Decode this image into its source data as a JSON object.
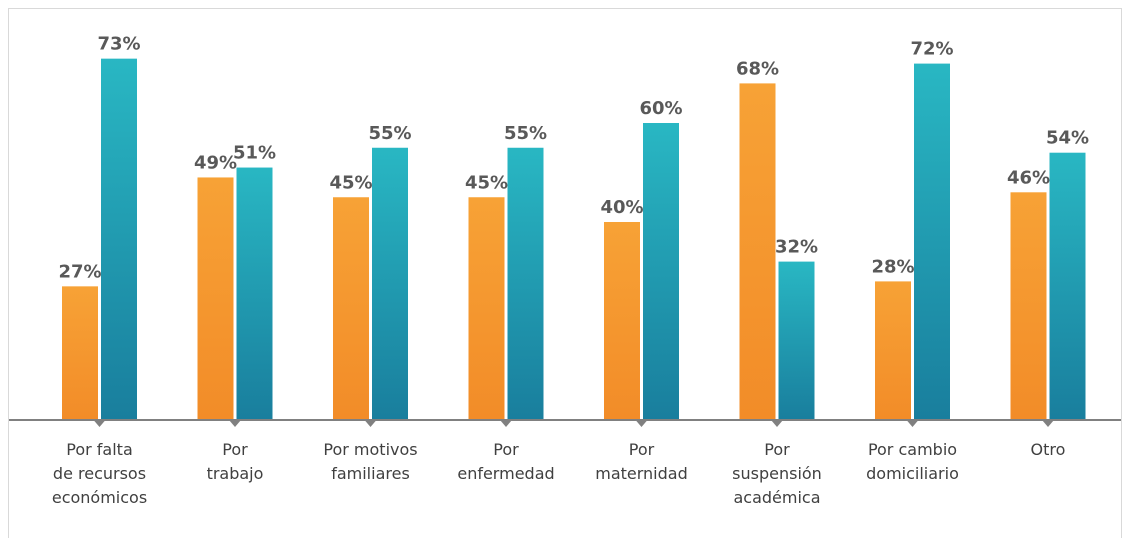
{
  "chart_data": {
    "type": "bar",
    "categories": [
      [
        "Por falta",
        "de recursos",
        "económicos"
      ],
      [
        "Por",
        "trabajo"
      ],
      [
        "Por motivos",
        "familiares"
      ],
      [
        "Por",
        "enfermedad"
      ],
      [
        "Por",
        "maternidad"
      ],
      [
        "Por",
        "suspensión",
        "académica"
      ],
      [
        "Por cambio",
        "domiciliario"
      ],
      [
        "Otro"
      ]
    ],
    "series": [
      {
        "values": [
          27,
          49,
          45,
          45,
          40,
          68,
          28,
          46
        ],
        "labels": [
          "27%",
          "49%",
          "45%",
          "45%",
          "40%",
          "68%",
          "28%",
          "46%"
        ],
        "color_top": "#f7a236",
        "color_bottom": "#f28c28"
      },
      {
        "values": [
          73,
          51,
          55,
          55,
          60,
          32,
          72,
          54
        ],
        "labels": [
          "73%",
          "51%",
          "55%",
          "55%",
          "60%",
          "32%",
          "72%",
          "54%"
        ],
        "color_top": "#29b7c3",
        "color_bottom": "#197e9d"
      }
    ],
    "ylim": [
      0,
      100
    ],
    "grid": false,
    "legend": "none"
  },
  "colors": {
    "axis": "#808080",
    "label_text": "#595959",
    "category_text": "#404040"
  }
}
